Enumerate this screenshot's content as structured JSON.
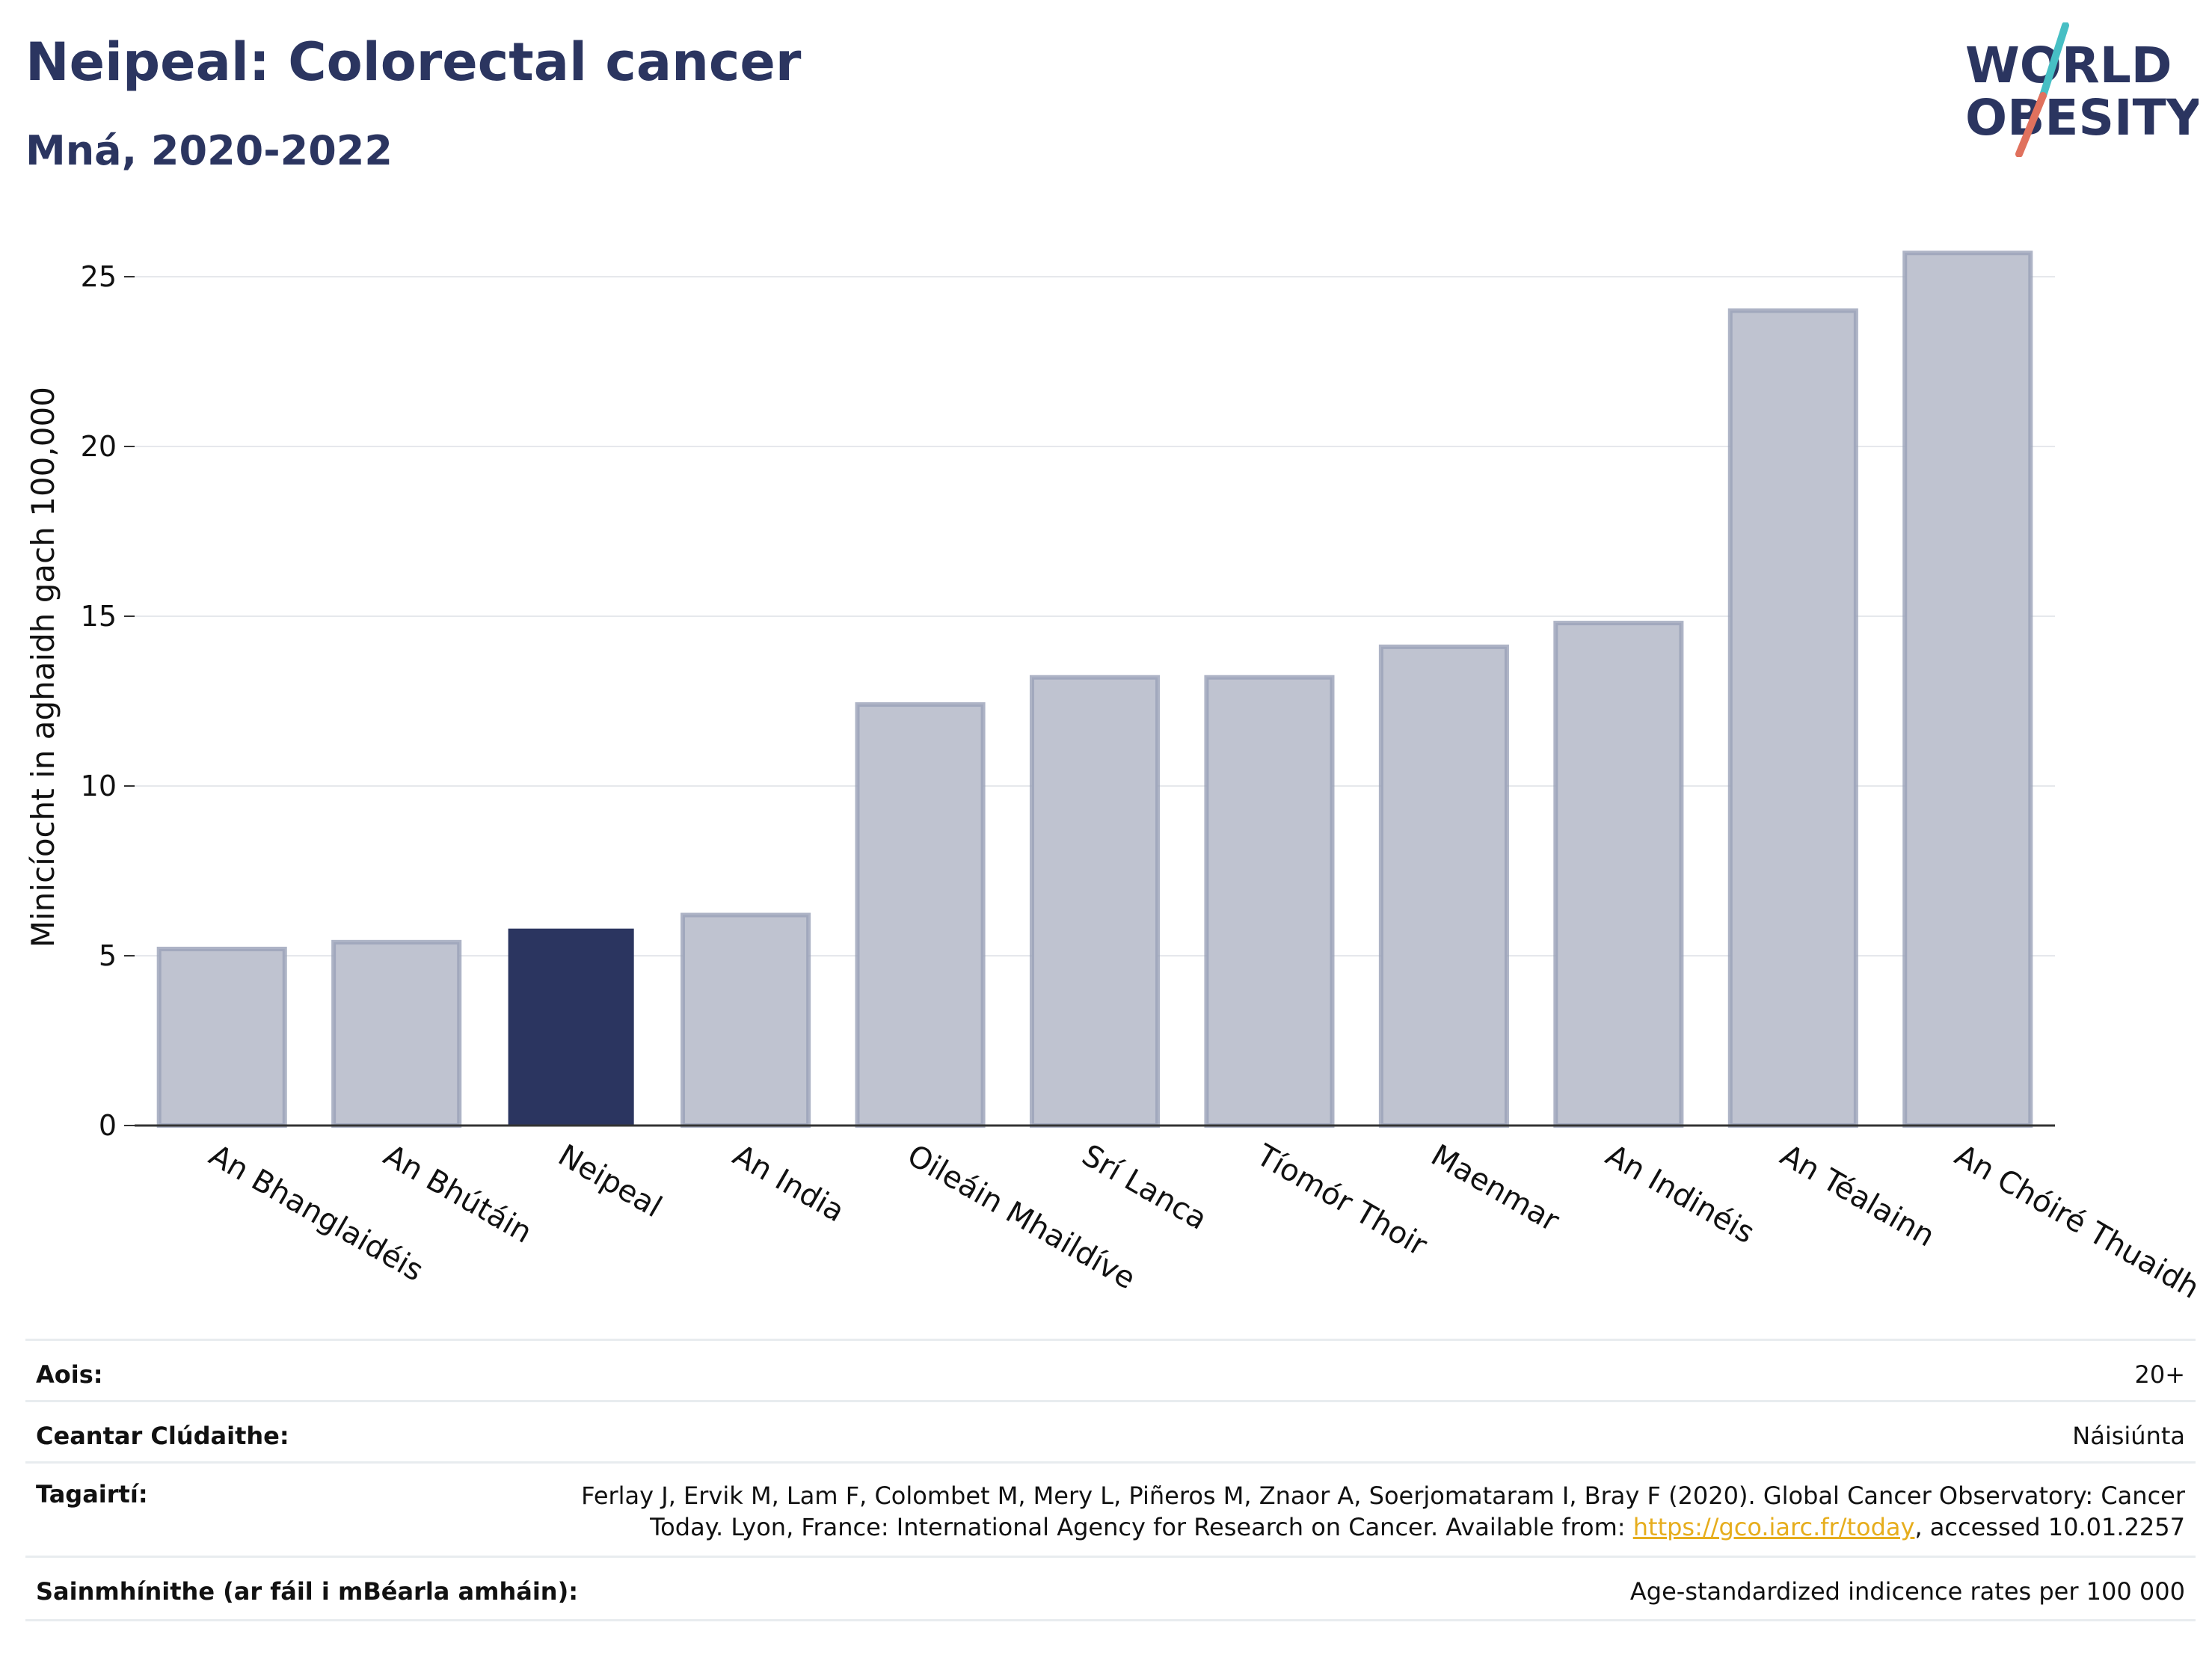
{
  "header": {
    "title": "Neipeal: Colorectal cancer",
    "subtitle": "Mná, 2020-2022"
  },
  "logo": {
    "line1": "WORLD",
    "line2": "OBESITY",
    "slash_colors": [
      "#47bfc4",
      "#e0715d"
    ]
  },
  "chart_data": {
    "type": "bar",
    "categories": [
      "An Bhanglaidéis",
      "An Bhútáin",
      "Neipeal",
      "An India",
      "Oileáin Mhaildíve",
      "Srí Lanca",
      "Tíomór Thoir",
      "Maenmar",
      "An Indinéis",
      "An Téalainn",
      "An Chóiré Thuaidh"
    ],
    "values": [
      5.2,
      5.4,
      5.8,
      6.2,
      12.4,
      13.2,
      13.2,
      14.1,
      14.8,
      24.0,
      25.7
    ],
    "highlight": "Neipeal",
    "ylabel": "Minicíocht in aghaidh gach 100,000",
    "xlabel": "",
    "ylim": [
      0,
      27
    ],
    "yticks": [
      0,
      5,
      10,
      15,
      20,
      25
    ],
    "grid": true,
    "colors": {
      "highlight": "#2b3560",
      "default": "#bfc3d0",
      "default_border": "#9aa1b8"
    }
  },
  "meta": {
    "age_label": "Aois:",
    "age_value": "20+",
    "coverage_label": "Ceantar Clúdaithe:",
    "coverage_value": "Náisiúnta",
    "refs_label": "Tagairtí:",
    "refs_line1": "Ferlay J, Ervik M, Lam F, Colombet M, Mery L, Piñeros M, Znaor A, Soerjomataram I, Bray F (2020). Global Cancer Observatory: Cancer",
    "refs_line2_pre": "Today. Lyon, France: International Agency for Research on Cancer. Available from: ",
    "refs_link": "https://gco.iarc.fr/today",
    "refs_line2_post": ", accessed 10.01.2257",
    "def_label": "Sainmhínithe (ar fáil i mBéarla amháin):",
    "def_value": "Age-standardized indicence rates per 100 000"
  }
}
